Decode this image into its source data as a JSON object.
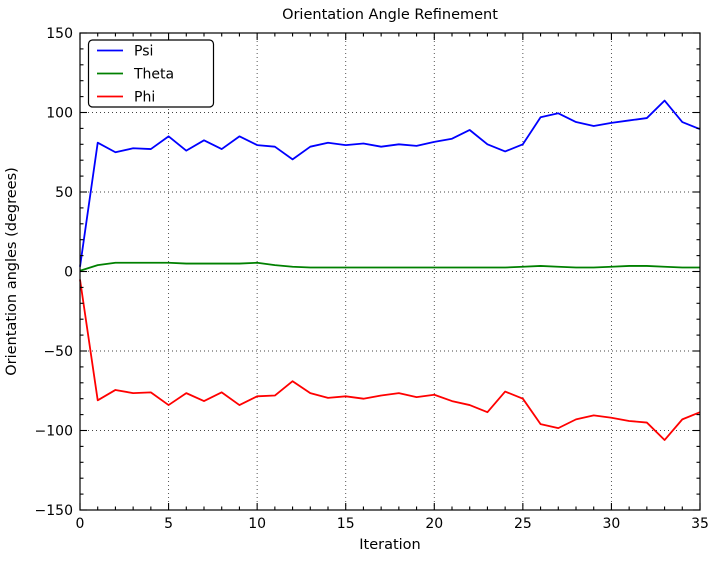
{
  "figure": {
    "title": "Orientation Angle Refinement",
    "xlabel": "Iteration",
    "ylabel": "Orientation angles (degrees)"
  },
  "chart_data": {
    "type": "line",
    "title": "Orientation Angle Refinement",
    "xlabel": "Iteration",
    "ylabel": "Orientation angles (degrees)",
    "xlim": [
      0,
      35
    ],
    "ylim": [
      -150,
      150
    ],
    "x_major_ticks": [
      0,
      5,
      10,
      15,
      20,
      25,
      30,
      35
    ],
    "y_major_ticks": [
      -150,
      -100,
      -50,
      0,
      50,
      100,
      150
    ],
    "x_minor_step": 1,
    "y_minor_step": 10,
    "grid": "dotted-major",
    "legend_position": "upper-left",
    "x": [
      0,
      1,
      2,
      3,
      4,
      5,
      6,
      7,
      8,
      9,
      10,
      11,
      12,
      13,
      14,
      15,
      16,
      17,
      18,
      19,
      20,
      21,
      22,
      23,
      24,
      25,
      26,
      27,
      28,
      29,
      30,
      31,
      32,
      33,
      34,
      35
    ],
    "series": [
      {
        "name": "Psi",
        "color": "#0000ff",
        "values": [
          3,
          81,
          75,
          77.5,
          77,
          85,
          76,
          82.5,
          77,
          85,
          79.5,
          78.5,
          70.5,
          78.5,
          81,
          79.5,
          80.5,
          78.5,
          80,
          79,
          81.5,
          83.5,
          89,
          80,
          75.5,
          80,
          97,
          99.5,
          94,
          91.5,
          93.5,
          95,
          96.5,
          107.5,
          94,
          89.5
        ]
      },
      {
        "name": "Theta",
        "color": "#008000",
        "values": [
          0.5,
          4,
          5.5,
          5.5,
          5.5,
          5.5,
          5,
          5,
          5,
          5,
          5.5,
          4,
          3,
          2.5,
          2.5,
          2.5,
          2.5,
          2.5,
          2.5,
          2.5,
          2.5,
          2.5,
          2.5,
          2.5,
          2.5,
          3,
          3.5,
          3,
          2.5,
          2.5,
          3,
          3.5,
          3.5,
          3,
          2.5,
          2.5
        ]
      },
      {
        "name": "Phi",
        "color": "#ff0000",
        "values": [
          -5,
          -81,
          -74.5,
          -76.5,
          -76,
          -84,
          -76.5,
          -81.5,
          -76,
          -84,
          -78.5,
          -78,
          -69,
          -76.5,
          -79.5,
          -78.5,
          -80,
          -78,
          -76.5,
          -79,
          -77.5,
          -81.5,
          -84,
          -88.5,
          -75.5,
          -80,
          -96,
          -98.5,
          -93,
          -90.5,
          -92,
          -94,
          -95,
          -106,
          -93,
          -88.5
        ]
      }
    ]
  }
}
